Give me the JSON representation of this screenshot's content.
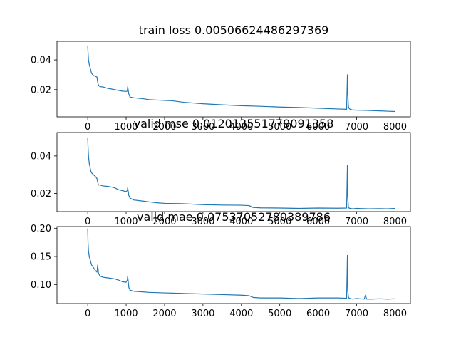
{
  "chart_data": [
    {
      "type": "line",
      "title": "train loss 0.00506624486297369",
      "xlim": [
        -800,
        8400
      ],
      "ylim": [
        0.0017,
        0.0525
      ],
      "xticks": [
        0,
        1000,
        2000,
        3000,
        4000,
        5000,
        6000,
        7000,
        8000
      ],
      "yticks": [
        0.02,
        0.04
      ],
      "ytick_labels": [
        "0.02",
        "0.04"
      ],
      "grid": false,
      "legend": "none",
      "series": [
        {
          "color": "#1f77b4",
          "x": [
            0,
            8,
            20,
            40,
            60,
            80,
            100,
            150,
            200,
            240,
            260,
            280,
            320,
            400,
            500,
            600,
            700,
            800,
            900,
            1000,
            1030,
            1040,
            1070,
            1100,
            1200,
            1400,
            1600,
            1800,
            2000,
            2200,
            2500,
            3000,
            3500,
            4000,
            4500,
            5000,
            5500,
            6000,
            6500,
            6740,
            6760,
            6770,
            6785,
            6800,
            6830,
            6900,
            7000,
            7300,
            7600,
            7800,
            8000
          ],
          "y": [
            0.0495,
            0.045,
            0.04,
            0.037,
            0.035,
            0.033,
            0.031,
            0.0295,
            0.029,
            0.0285,
            0.025,
            0.023,
            0.022,
            0.0218,
            0.021,
            0.0205,
            0.02,
            0.0195,
            0.019,
            0.0188,
            0.019,
            0.022,
            0.017,
            0.015,
            0.0145,
            0.014,
            0.0133,
            0.013,
            0.0128,
            0.0125,
            0.0115,
            0.0105,
            0.0098,
            0.0092,
            0.0088,
            0.0083,
            0.008,
            0.0075,
            0.007,
            0.0068,
            0.03,
            0.018,
            0.009,
            0.0075,
            0.0068,
            0.0063,
            0.0062,
            0.006,
            0.0057,
            0.0055,
            0.0053
          ]
        }
      ]
    },
    {
      "type": "line",
      "title": "valid mse 0.012013551779091358",
      "xlim": [
        -800,
        8400
      ],
      "ylim": [
        0.0103,
        0.0525
      ],
      "xticks": [
        0,
        1000,
        2000,
        3000,
        4000,
        5000,
        6000,
        7000,
        8000
      ],
      "yticks": [
        0.02,
        0.04
      ],
      "ytick_labels": [
        "0.02",
        "0.04"
      ],
      "grid": false,
      "legend": "none",
      "series": [
        {
          "color": "#1f77b4",
          "x": [
            0,
            8,
            20,
            40,
            60,
            80,
            100,
            150,
            200,
            240,
            260,
            280,
            320,
            400,
            500,
            600,
            700,
            800,
            900,
            1000,
            1030,
            1040,
            1070,
            1100,
            1200,
            1400,
            1600,
            1800,
            2000,
            2500,
            3000,
            3500,
            4000,
            4200,
            4300,
            4500,
            5000,
            5500,
            6000,
            6500,
            6740,
            6760,
            6770,
            6785,
            6800,
            6830,
            6900,
            7000,
            7300,
            7600,
            7800,
            8000
          ],
          "y": [
            0.0495,
            0.045,
            0.04,
            0.036,
            0.034,
            0.032,
            0.031,
            0.03,
            0.029,
            0.028,
            0.026,
            0.0245,
            0.0245,
            0.024,
            0.0238,
            0.0235,
            0.023,
            0.022,
            0.0215,
            0.021,
            0.0215,
            0.023,
            0.019,
            0.0175,
            0.0165,
            0.016,
            0.0155,
            0.015,
            0.0147,
            0.0145,
            0.014,
            0.0138,
            0.0137,
            0.0135,
            0.0125,
            0.0123,
            0.0122,
            0.012,
            0.0122,
            0.0121,
            0.0122,
            0.035,
            0.018,
            0.013,
            0.0122,
            0.012,
            0.0118,
            0.012,
            0.0118,
            0.0119,
            0.0118,
            0.012
          ]
        }
      ]
    },
    {
      "type": "line",
      "title": "valid mae 0.0753705278038978​6",
      "xlim": [
        -800,
        8400
      ],
      "ylim": [
        0.066,
        0.2035
      ],
      "xticks": [
        0,
        1000,
        2000,
        3000,
        4000,
        5000,
        6000,
        7000,
        8000
      ],
      "yticks": [
        0.1,
        0.15,
        0.2
      ],
      "ytick_labels": [
        "0.10",
        "0.15",
        "0.20"
      ],
      "grid": false,
      "legend": "none",
      "series": [
        {
          "color": "#1f77b4",
          "x": [
            0,
            8,
            20,
            40,
            60,
            80,
            100,
            150,
            200,
            240,
            260,
            280,
            320,
            400,
            500,
            600,
            700,
            800,
            900,
            1000,
            1030,
            1040,
            1070,
            1100,
            1200,
            1400,
            1600,
            1800,
            2000,
            2500,
            3000,
            3500,
            4000,
            4200,
            4300,
            4500,
            5000,
            5500,
            6000,
            6500,
            6740,
            6760,
            6770,
            6785,
            6800,
            6830,
            6900,
            7000,
            7200,
            7230,
            7260,
            7400,
            7600,
            7800,
            8000
          ],
          "y": [
            0.2,
            0.175,
            0.16,
            0.15,
            0.145,
            0.14,
            0.135,
            0.13,
            0.125,
            0.122,
            0.135,
            0.12,
            0.115,
            0.113,
            0.112,
            0.111,
            0.11,
            0.108,
            0.105,
            0.104,
            0.108,
            0.115,
            0.095,
            0.09,
            0.088,
            0.087,
            0.086,
            0.0855,
            0.085,
            0.084,
            0.083,
            0.082,
            0.081,
            0.08,
            0.077,
            0.076,
            0.076,
            0.075,
            0.076,
            0.076,
            0.0755,
            0.152,
            0.09,
            0.078,
            0.076,
            0.075,
            0.074,
            0.075,
            0.074,
            0.081,
            0.074,
            0.074,
            0.0745,
            0.074,
            0.0745
          ]
        }
      ]
    }
  ]
}
